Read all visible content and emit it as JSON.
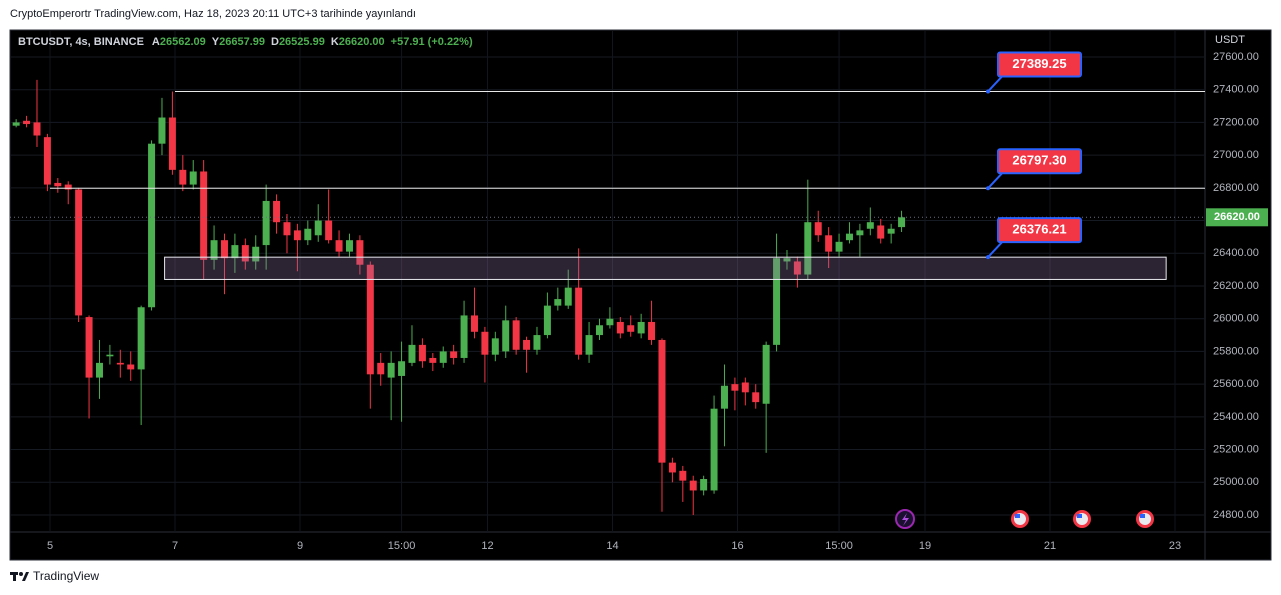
{
  "header": {
    "title": "CryptoEmperortr TradingView.com, Haz 18, 2023 20:11 UTC+3 tarihinde yayınlandı"
  },
  "footer": {
    "brand": "TradingView"
  },
  "chart_data": {
    "type": "candlestick",
    "symbol": "BTCUSDT, 4s, BINANCE",
    "ohlc_legend": [
      {
        "label": "A",
        "value": "26562.09"
      },
      {
        "label": "Y",
        "value": "26657.99"
      },
      {
        "label": "D",
        "value": "26525.99"
      },
      {
        "label": "K",
        "value": "26620.00"
      }
    ],
    "change": "+57.91 (+0.22%)",
    "y_axis_label": "USDT",
    "x": [
      -13,
      -9,
      -5,
      -1,
      3,
      7,
      11,
      15,
      19,
      23,
      27,
      31,
      35,
      39,
      43,
      47,
      51,
      55,
      59,
      63,
      67,
      71,
      75,
      79,
      83,
      87,
      91,
      95,
      99,
      103,
      107,
      111,
      115,
      119,
      123,
      127,
      131,
      135,
      139,
      143,
      147,
      151,
      155,
      159,
      163,
      167,
      171,
      175,
      179,
      183,
      187,
      191,
      195,
      199,
      203,
      207,
      211,
      215,
      219,
      223,
      227,
      231,
      235,
      239,
      243,
      247,
      251,
      255,
      259,
      263,
      267,
      271,
      275,
      279,
      283,
      287,
      291,
      295,
      299,
      303,
      307,
      311,
      315,
      319,
      323,
      327
    ],
    "open": [
      27180,
      27210,
      27200,
      27110,
      26830,
      26820,
      26790,
      26010,
      25640,
      25770,
      25730,
      25720,
      25690,
      26070,
      27070,
      27230,
      26910,
      26820,
      26900,
      26360,
      26480,
      26370,
      26450,
      26350,
      26450,
      26720,
      26590,
      26540,
      26480,
      26510,
      26600,
      26480,
      26410,
      26480,
      26330,
      25730,
      25640,
      25650,
      25730,
      25840,
      25760,
      25730,
      25800,
      25760,
      26020,
      25920,
      25780,
      25800,
      25990,
      25870,
      25810,
      25900,
      26080,
      26080,
      26190,
      25780,
      25900,
      25960,
      25980,
      25960,
      25910,
      25980,
      25870,
      25120,
      25070,
      25010,
      24950,
      24950,
      25450,
      25600,
      25610,
      25550,
      25480,
      25840,
      26350,
      26350,
      26270,
      26590,
      26510,
      26410,
      26480,
      26510,
      26550,
      26570,
      26520,
      26560
    ],
    "high": [
      27220,
      27240,
      27460,
      27130,
      26860,
      26840,
      26800,
      26020,
      25870,
      25840,
      25810,
      25800,
      26080,
      27090,
      27350,
      27389,
      27000,
      26970,
      26970,
      26570,
      26520,
      26520,
      26490,
      26510,
      26820,
      26760,
      26640,
      26580,
      26600,
      26700,
      26790,
      26540,
      26520,
      26510,
      26350,
      25790,
      25800,
      25860,
      25960,
      25880,
      25790,
      25830,
      25840,
      26110,
      26190,
      25950,
      25920,
      26080,
      26010,
      25890,
      25950,
      26160,
      26190,
      26300,
      26430,
      25980,
      26000,
      26070,
      26010,
      26020,
      26030,
      26110,
      25880,
      25150,
      25100,
      25040,
      25040,
      25530,
      25720,
      25640,
      25640,
      25600,
      25860,
      26520,
      26420,
      26380,
      26850,
      26660,
      26560,
      26520,
      26590,
      26580,
      26680,
      26610,
      26580,
      26660
    ],
    "low": [
      27170,
      27170,
      27050,
      26780,
      26770,
      26700,
      25980,
      25390,
      25510,
      25720,
      25640,
      25620,
      25350,
      26050,
      27000,
      26880,
      26780,
      26790,
      26240,
      26300,
      26150,
      26280,
      26300,
      26300,
      26300,
      26520,
      26400,
      26290,
      26450,
      26470,
      26460,
      26380,
      26380,
      26270,
      25450,
      25590,
      25380,
      25370,
      25710,
      25700,
      25680,
      25700,
      25720,
      25730,
      25880,
      25610,
      25740,
      25760,
      25780,
      25670,
      25780,
      25880,
      26050,
      26060,
      25750,
      25730,
      25870,
      25940,
      25880,
      25890,
      25880,
      25840,
      24820,
      25000,
      24880,
      24800,
      24920,
      24930,
      25220,
      25440,
      25470,
      25450,
      25180,
      25800,
      26300,
      26190,
      26240,
      26470,
      26310,
      26380,
      26460,
      26380,
      26510,
      26460,
      26460,
      26530
    ],
    "close": [
      27200,
      27190,
      27120,
      26820,
      26810,
      26790,
      26020,
      25640,
      25730,
      25780,
      25720,
      25690,
      26070,
      27070,
      27230,
      26910,
      26820,
      26900,
      26360,
      26480,
      26370,
      26450,
      26350,
      26440,
      26720,
      26590,
      26510,
      26480,
      26550,
      26600,
      26480,
      26410,
      26480,
      26330,
      25660,
      25660,
      25730,
      25740,
      25840,
      25740,
      25730,
      25800,
      25760,
      26020,
      25920,
      25780,
      25880,
      25990,
      25810,
      25810,
      25900,
      26080,
      26120,
      26190,
      25780,
      25900,
      25960,
      26000,
      25910,
      25920,
      25980,
      25870,
      25120,
      25060,
      25010,
      24950,
      25020,
      25450,
      25590,
      25560,
      25550,
      25490,
      25840,
      26370,
      26370,
      26270,
      26590,
      26510,
      26410,
      26470,
      26520,
      26540,
      26590,
      26490,
      26550,
      26620
    ],
    "up_color": "#4caf50",
    "down_color": "#f23645",
    "xlim": [
      -15.36,
      443.52
    ],
    "xticks": [
      {
        "value": 0,
        "label": "5"
      },
      {
        "value": 48,
        "label": "7"
      },
      {
        "value": 96,
        "label": "9"
      },
      {
        "value": 135,
        "label": "15:00"
      },
      {
        "value": 168,
        "label": "12"
      },
      {
        "value": 216,
        "label": "14"
      },
      {
        "value": 264,
        "label": "16"
      },
      {
        "value": 303,
        "label": "15:00"
      },
      {
        "value": 336,
        "label": "19"
      },
      {
        "value": 384,
        "label": "21"
      },
      {
        "value": 432,
        "label": "23"
      }
    ],
    "ylim": [
      24696,
      27765
    ],
    "yticks": [
      {
        "value": 24800,
        "label": "24800.00"
      },
      {
        "value": 25000,
        "label": "25000.00"
      },
      {
        "value": 25200,
        "label": "25200.00"
      },
      {
        "value": 25400,
        "label": "25400.00"
      },
      {
        "value": 25600,
        "label": "25600.00"
      },
      {
        "value": 25800,
        "label": "25800.00"
      },
      {
        "value": 26000,
        "label": "26000.00"
      },
      {
        "value": 26200,
        "label": "26200.00"
      },
      {
        "value": 26400,
        "label": "26400.00"
      },
      {
        "value": 26600,
        "label": "26600.00"
      },
      {
        "value": 26800,
        "label": "26800.00"
      },
      {
        "value": 27000,
        "label": "27000.00"
      },
      {
        "value": 27200,
        "label": "27200.00"
      },
      {
        "value": 27400,
        "label": "27400.00"
      },
      {
        "value": 27600,
        "label": "27600.00"
      }
    ],
    "grid": true,
    "last_price": {
      "value": 26620,
      "label": "26620.00"
    },
    "horizontal_lines": [
      {
        "price": {
          "value": 27389.25,
          "label": "27389.25"
        },
        "x_start": 48
      },
      {
        "price": {
          "value": 26797.3,
          "label": "26797.30"
        },
        "x_start": 0
      }
    ],
    "zone": {
      "top": {
        "value": 26376.21,
        "label": "26376.21"
      },
      "bottom": 26240,
      "x_start": 44,
      "x_end": 428.6
    }
  }
}
